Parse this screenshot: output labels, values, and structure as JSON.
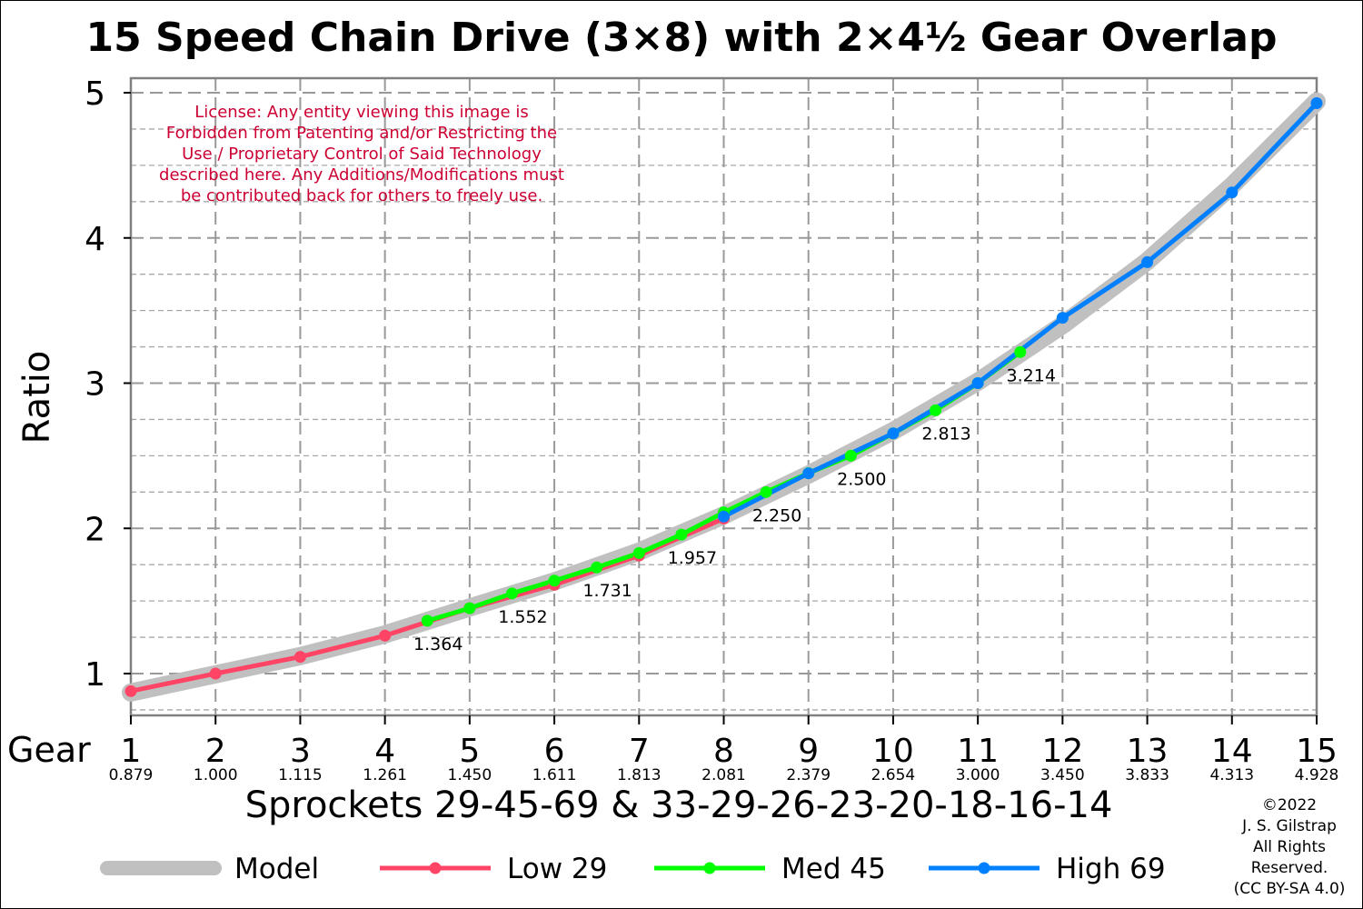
{
  "chart_data": {
    "type": "line",
    "title": "15 Speed Chain Drive (3×8) with 2×4½ Gear Overlap",
    "xlabel": "Sprockets  29-45-69  &  33-29-26-23-20-18-16-14",
    "ylabel": "Ratio",
    "x_prefix_label": "Gear",
    "xlim": [
      1,
      15
    ],
    "ylim": [
      0.72,
      5.1
    ],
    "yticks": [
      1,
      2,
      3,
      4,
      5
    ],
    "y_minor_grid": [
      0.75,
      1.25,
      1.5,
      1.75,
      2.25,
      2.5,
      2.75,
      3.25,
      3.5,
      3.75,
      4.25,
      4.5,
      4.75
    ],
    "grid": true,
    "legend_position": "bottom",
    "gears": [
      {
        "gear": "1",
        "ratio": "0.879"
      },
      {
        "gear": "2",
        "ratio": "1.000"
      },
      {
        "gear": "3",
        "ratio": "1.115"
      },
      {
        "gear": "4",
        "ratio": "1.261"
      },
      {
        "gear": "5",
        "ratio": "1.450"
      },
      {
        "gear": "6",
        "ratio": "1.611"
      },
      {
        "gear": "7",
        "ratio": "1.813"
      },
      {
        "gear": "8",
        "ratio": "2.081"
      },
      {
        "gear": "9",
        "ratio": "2.379"
      },
      {
        "gear": "10",
        "ratio": "2.654"
      },
      {
        "gear": "11",
        "ratio": "3.000"
      },
      {
        "gear": "12",
        "ratio": "3.450"
      },
      {
        "gear": "13",
        "ratio": "3.833"
      },
      {
        "gear": "14",
        "ratio": "4.313"
      },
      {
        "gear": "15",
        "ratio": "4.928"
      }
    ],
    "series": [
      {
        "name": "Model",
        "color": "#c0c0c0",
        "type": "band",
        "x": [
          1,
          2,
          3,
          4,
          5,
          6,
          7,
          8,
          9,
          10,
          11,
          12,
          13,
          14,
          15
        ],
        "y": [
          0.87,
          0.995,
          1.12,
          1.27,
          1.455,
          1.635,
          1.84,
          2.09,
          2.37,
          2.67,
          3.01,
          3.4,
          3.84,
          4.36,
          4.94
        ]
      },
      {
        "name": "Low 29",
        "color": "#ff4466",
        "x": [
          1,
          2,
          3,
          4,
          5,
          6,
          7,
          8
        ],
        "y": [
          0.879,
          1.0,
          1.115,
          1.261,
          1.45,
          1.611,
          1.813,
          2.068
        ]
      },
      {
        "name": "Med 45",
        "color": "#00ff00",
        "x": [
          4.5,
          5,
          5.5,
          6,
          6.5,
          7,
          7.5,
          8,
          8.5,
          9,
          9.5,
          10,
          10.5,
          11,
          11.5
        ],
        "y": [
          1.364,
          1.45,
          1.552,
          1.64,
          1.731,
          1.83,
          1.957,
          2.11,
          2.25,
          2.38,
          2.5,
          2.654,
          2.813,
          3.0,
          3.214
        ]
      },
      {
        "name": "High 69",
        "color": "#0080ff",
        "x": [
          8,
          9,
          10,
          11,
          12,
          13,
          14,
          15
        ],
        "y": [
          2.081,
          2.379,
          2.654,
          3.0,
          3.45,
          3.833,
          4.313,
          4.928
        ]
      }
    ],
    "annotations": [
      {
        "text": "1.364",
        "x": 4.5,
        "y": 1.364
      },
      {
        "text": "1.552",
        "x": 5.5,
        "y": 1.552
      },
      {
        "text": "1.731",
        "x": 6.5,
        "y": 1.731
      },
      {
        "text": "1.957",
        "x": 7.5,
        "y": 1.957
      },
      {
        "text": "2.250",
        "x": 8.5,
        "y": 2.25
      },
      {
        "text": "2.500",
        "x": 9.5,
        "y": 2.5
      },
      {
        "text": "2.813",
        "x": 10.5,
        "y": 2.813
      },
      {
        "text": "3.214",
        "x": 11.5,
        "y": 3.214
      }
    ],
    "license_lines": [
      "License: Any entity viewing this image is",
      "Forbidden from Patenting and/or Restricting the",
      "Use / Proprietary Control of Said Technology",
      "described here.  Any Additions/Modifications must",
      "be contributed back for others to freely use."
    ],
    "copyright_lines": [
      "©2022",
      "J. S. Gilstrap",
      "All Rights",
      "Reserved.",
      "(CC BY-SA 4.0)"
    ],
    "license_color": "#cc0033"
  }
}
